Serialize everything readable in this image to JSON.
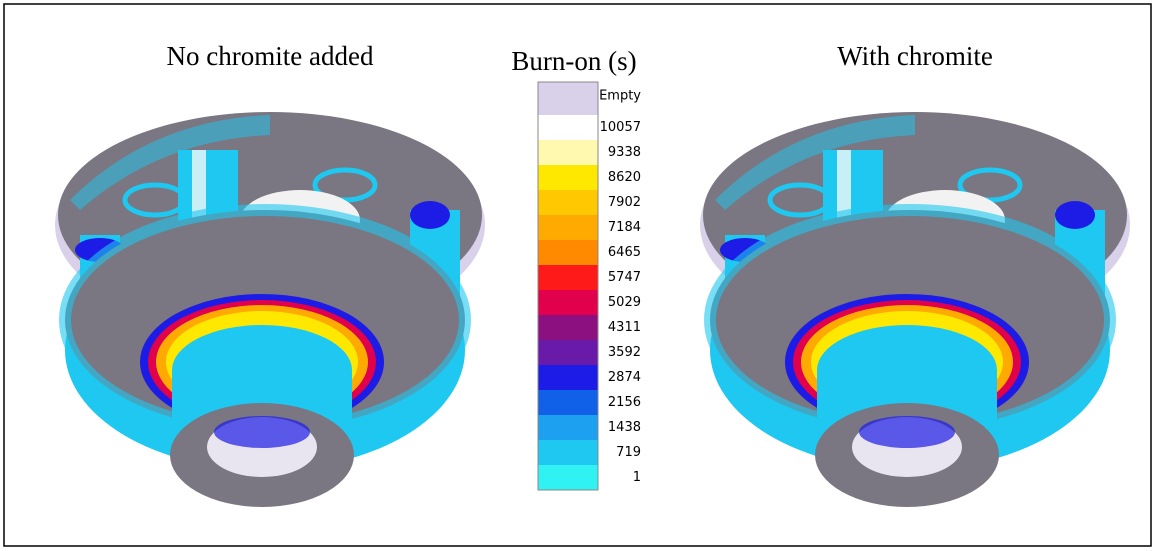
{
  "panels": [
    {
      "title": "No chromite added"
    },
    {
      "title": "With chromite"
    }
  ],
  "legend": {
    "title": "Burn-on (s)",
    "items": [
      {
        "label": "Empty",
        "color": "#d9d0ea"
      },
      {
        "label": "10057",
        "color": "#ffffff"
      },
      {
        "label": "9338",
        "color": "#fff9b0"
      },
      {
        "label": "8620",
        "color": "#ffe800"
      },
      {
        "label": "7902",
        "color": "#ffc800"
      },
      {
        "label": "7184",
        "color": "#ffaa00"
      },
      {
        "label": "6465",
        "color": "#ff8a00"
      },
      {
        "label": "5747",
        "color": "#ff1a1a"
      },
      {
        "label": "5029",
        "color": "#e0004c"
      },
      {
        "label": "4311",
        "color": "#8c1080"
      },
      {
        "label": "3592",
        "color": "#6a1aa8"
      },
      {
        "label": "2874",
        "color": "#1c1ce6"
      },
      {
        "label": "2156",
        "color": "#1060e8"
      },
      {
        "label": "1438",
        "color": "#1ea0f0"
      },
      {
        "label": "719",
        "color": "#1ec8f0"
      },
      {
        "label": "1",
        "color": "#30f2f2"
      }
    ]
  }
}
